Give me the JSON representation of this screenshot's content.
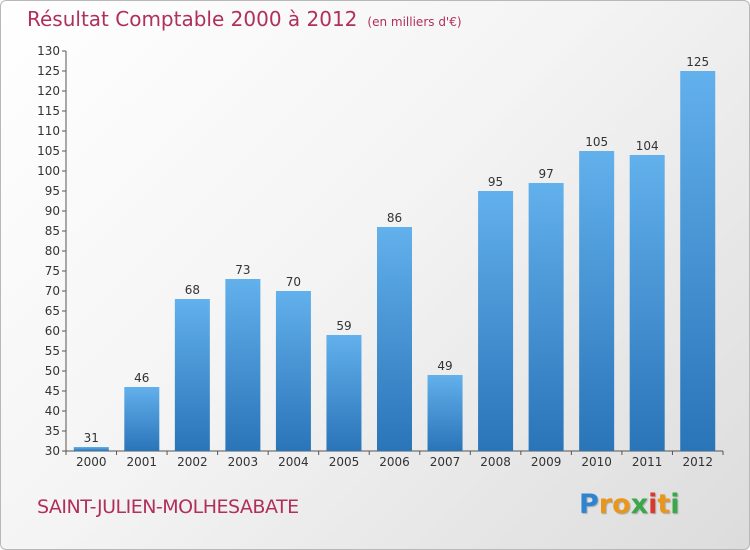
{
  "chart_data": {
    "type": "bar",
    "title": "Résultat Comptable 2000 à 2012",
    "subtitle": "(en milliers d'€)",
    "categories": [
      "2000",
      "2001",
      "2002",
      "2003",
      "2004",
      "2005",
      "2006",
      "2007",
      "2008",
      "2009",
      "2010",
      "2011",
      "2012"
    ],
    "values": [
      31,
      46,
      68,
      73,
      70,
      59,
      86,
      49,
      95,
      97,
      105,
      104,
      125
    ],
    "ylim": [
      30,
      130
    ],
    "yticks": [
      30,
      35,
      40,
      45,
      50,
      55,
      60,
      65,
      70,
      75,
      80,
      85,
      90,
      95,
      100,
      105,
      110,
      115,
      120,
      125,
      130
    ],
    "grid": false,
    "bar_color": "#3a8fd6",
    "bar_color_top": "#62b0ec",
    "bar_color_bottom": "#2a74b8"
  },
  "footer": {
    "city": "SAINT-JULIEN-MOLHESABATE",
    "logo_letters": [
      {
        "ch": "P",
        "color": "#2f84d0"
      },
      {
        "ch": "r",
        "color": "#e8961c"
      },
      {
        "ch": "o",
        "color": "#e8961c"
      },
      {
        "ch": "x",
        "color": "#3aa84a"
      },
      {
        "ch": "i",
        "color": "#d83a2c"
      },
      {
        "ch": "t",
        "color": "#e8961c"
      },
      {
        "ch": "i",
        "color": "#3aa84a"
      }
    ]
  }
}
